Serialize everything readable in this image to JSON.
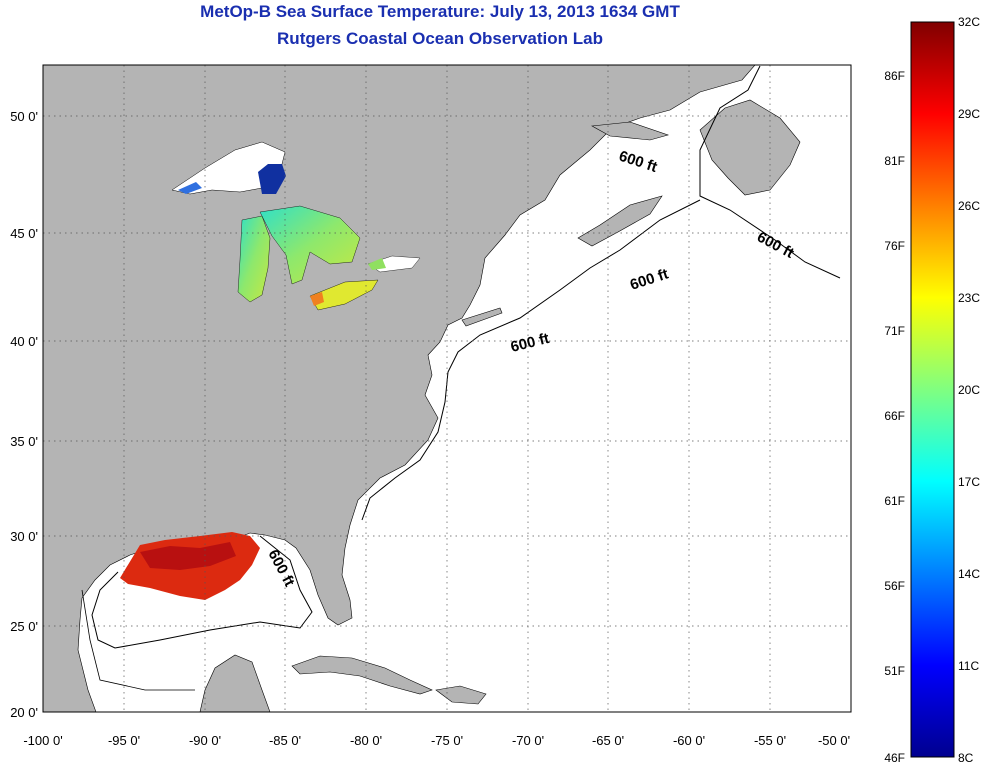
{
  "title": "MetOp-B Sea Surface Temperature:  July 13, 2013 1634 GMT",
  "subtitle": "Rutgers Coastal Ocean Observation Lab",
  "map": {
    "lon_ticks": [
      "-100 0'",
      "-95 0'",
      "-90 0'",
      "-85 0'",
      "-80 0'",
      "-75 0'",
      "-70 0'",
      "-65 0'",
      "-60 0'",
      "-55 0'",
      "-50 0'"
    ],
    "lat_ticks": [
      "50 0'",
      "45 0'",
      "40 0'",
      "35 0'",
      "30 0'",
      "25 0'",
      "20 0'"
    ],
    "contour_labels": [
      "600 ft",
      "600 ft",
      "600 ft",
      "600 ft",
      "600 ft"
    ],
    "colors": {
      "land": "#b4b4b4",
      "ocean": "#ffffff",
      "grid": "#000000"
    }
  },
  "colorbar": {
    "fahrenheit": [
      "86F",
      "81F",
      "76F",
      "71F",
      "66F",
      "61F",
      "56F",
      "51F",
      "46F"
    ],
    "celsius": [
      "32C",
      "29C",
      "26C",
      "23C",
      "20C",
      "17C",
      "14C",
      "11C",
      "8C"
    ]
  }
}
